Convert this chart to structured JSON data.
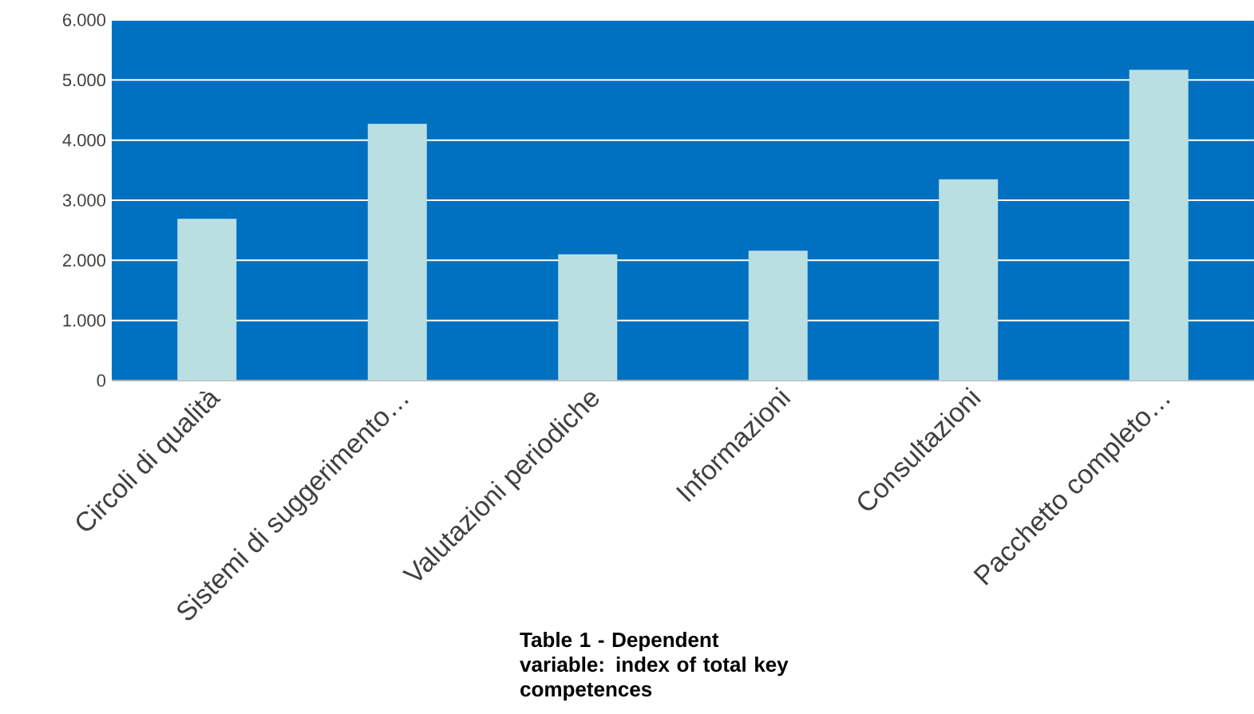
{
  "chart_data": {
    "type": "bar",
    "categories": [
      "Circoli di qualità",
      "Sistemi di suggerimento…",
      "Valutazioni periodiche",
      "Informazioni",
      "Consultazioni",
      "Pacchetto completo…"
    ],
    "values": [
      2690,
      4270,
      2100,
      2160,
      3350,
      5170
    ],
    "color": "#b9dfe3",
    "ylim": [
      0,
      6000
    ],
    "yticks": [
      0,
      {
        "value": 1000,
        "label": "1.000"
      },
      {
        "value": 2000,
        "label": "2.000"
      },
      {
        "value": 3000,
        "label": "3.000"
      },
      {
        "value": 4000,
        "label": "4.000"
      },
      {
        "value": 5000,
        "label": "5.000"
      },
      {
        "value": 6000,
        "label": "6.000"
      }
    ],
    "grid": "y",
    "annotations": [
      "Table 1 - Dependent variable: index of total key competences"
    ]
  }
}
